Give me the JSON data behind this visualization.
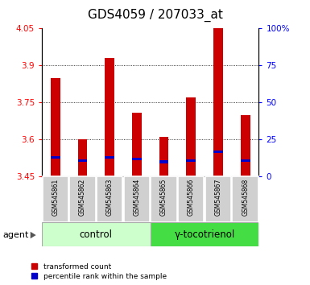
{
  "title": "GDS4059 / 207033_at",
  "samples": [
    "GSM545861",
    "GSM545862",
    "GSM545863",
    "GSM545864",
    "GSM545865",
    "GSM545866",
    "GSM545867",
    "GSM545868"
  ],
  "transformed_count": [
    3.85,
    3.6,
    3.93,
    3.71,
    3.61,
    3.77,
    4.05,
    3.7
  ],
  "percentile_rank": [
    13,
    11,
    13,
    12,
    10,
    11,
    17,
    11
  ],
  "bar_bottom": 3.45,
  "ylim_left": [
    3.45,
    4.05
  ],
  "ylim_right": [
    0,
    100
  ],
  "yticks_left": [
    3.45,
    3.6,
    3.75,
    3.9,
    4.05
  ],
  "yticks_right": [
    0,
    25,
    50,
    75,
    100
  ],
  "ytick_labels_left": [
    "3.45",
    "3.6",
    "3.75",
    "3.9",
    "4.05"
  ],
  "ytick_labels_right": [
    "0",
    "25",
    "50",
    "75",
    "100%"
  ],
  "bar_color": "#cc0000",
  "percentile_color": "#0000cc",
  "control_bg": "#ccffcc",
  "treatment_bg": "#44dd44",
  "sample_box_bg": "#d0d0d0",
  "bar_width": 0.35,
  "grid_yticks": [
    3.6,
    3.75,
    3.9
  ],
  "title_fontsize": 11,
  "tick_fontsize": 7.5,
  "legend_items": [
    "transformed count",
    "percentile rank within the sample"
  ],
  "group_names": [
    "control",
    "γ-tocotrienol"
  ],
  "agent_label": "agent"
}
